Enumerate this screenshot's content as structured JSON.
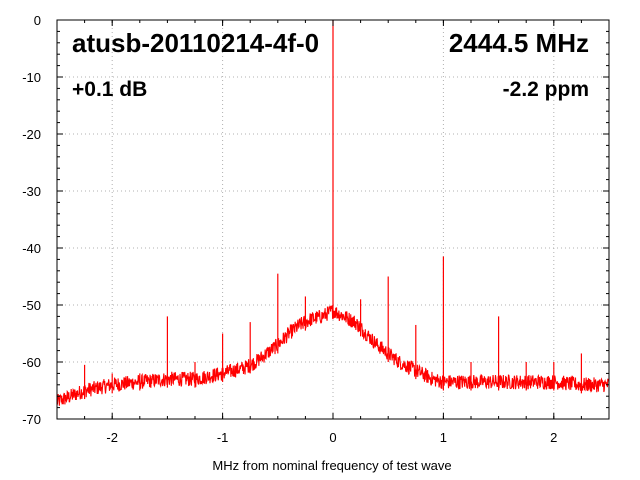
{
  "chart_data": {
    "type": "line",
    "title": "atusb-20110214-4f-0",
    "frequency": "2444.5 MHz",
    "gain": "+0.1 dB",
    "ppm": "-2.2 ppm",
    "xlabel": "MHz from nominal frequency of test wave",
    "ylabel": "",
    "xlim": [
      -2.5,
      2.5
    ],
    "ylim": [
      -70,
      0
    ],
    "x_ticks": [
      -2,
      -1,
      0,
      1,
      2
    ],
    "x_tick_labels": [
      "-2",
      "-1",
      "0",
      "1",
      "2"
    ],
    "y_ticks": [
      0,
      -10,
      -20,
      -30,
      -40,
      -50,
      -60,
      -70
    ],
    "y_tick_labels": [
      "0",
      "-10",
      "-20",
      "-30",
      "-40",
      "-50",
      "-60",
      "-70"
    ],
    "grid": true,
    "series_color": "#ff0000",
    "series": [
      {
        "name": "",
        "x": [
          -2.5,
          -2.25,
          -2.0,
          -1.75,
          -1.5,
          -1.25,
          -1.0,
          -0.9,
          -0.8,
          -0.7,
          -0.6,
          -0.5,
          -0.4,
          -0.3,
          -0.2,
          -0.1,
          -0.05,
          0.0,
          0.05,
          0.1,
          0.2,
          0.3,
          0.4,
          0.5,
          0.6,
          0.7,
          0.8,
          0.9,
          1.0,
          1.25,
          1.5,
          1.75,
          2.0,
          2.25,
          2.5
        ],
        "values": [
          -67,
          -65,
          -64,
          -63.5,
          -63,
          -63,
          -62,
          -61.5,
          -61,
          -60,
          -58.5,
          -57,
          -55,
          -53.5,
          -52.5,
          -52,
          -51.5,
          -51,
          -51.5,
          -52,
          -53,
          -55,
          -57,
          -58.5,
          -60,
          -61,
          -62,
          -63,
          -63.5,
          -63.5,
          -63.5,
          -63.5,
          -63.5,
          -64,
          -64
        ]
      }
    ],
    "spurs": [
      {
        "x": 0.0,
        "y": 0
      },
      {
        "x": -2.25,
        "y": -60.5
      },
      {
        "x": -2.0,
        "y": -62
      },
      {
        "x": -1.75,
        "y": -62
      },
      {
        "x": -1.5,
        "y": -52
      },
      {
        "x": -1.25,
        "y": -60
      },
      {
        "x": -1.0,
        "y": -55
      },
      {
        "x": -0.75,
        "y": -53
      },
      {
        "x": -0.5,
        "y": -44.5
      },
      {
        "x": -0.25,
        "y": -48.5
      },
      {
        "x": 0.25,
        "y": -49
      },
      {
        "x": 0.5,
        "y": -45
      },
      {
        "x": 0.75,
        "y": -53.5
      },
      {
        "x": 1.0,
        "y": -41.5
      },
      {
        "x": 1.25,
        "y": -60
      },
      {
        "x": 1.5,
        "y": -52
      },
      {
        "x": 1.75,
        "y": -60
      },
      {
        "x": 2.0,
        "y": -60
      },
      {
        "x": 2.25,
        "y": -58.5
      }
    ]
  }
}
